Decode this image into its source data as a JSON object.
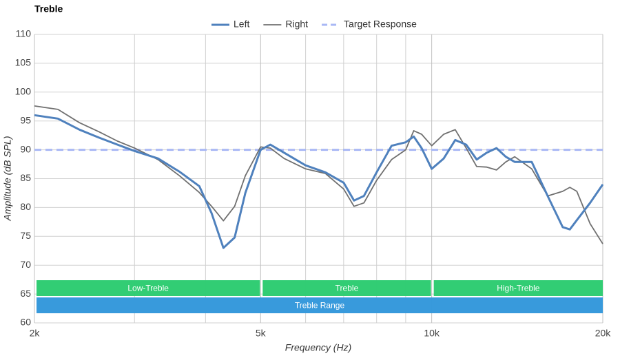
{
  "chart_data": {
    "type": "line",
    "title": "Treble",
    "x_label": "Frequency (Hz)",
    "y_label": "Amplitude (dB SPL)",
    "log_x": true,
    "grid": true,
    "xlim": [
      2000,
      20000
    ],
    "xticks": [
      {
        "value": 2000,
        "label": "2k"
      },
      {
        "value": 5000,
        "label": "5k"
      },
      {
        "value": 10000,
        "label": "10k"
      },
      {
        "value": 20000,
        "label": "20k"
      }
    ],
    "xminor": [
      3000,
      4000,
      6000,
      7000,
      8000,
      9000
    ],
    "ylim": [
      60,
      110
    ],
    "yticks": [
      60,
      65,
      70,
      75,
      80,
      85,
      90,
      95,
      100,
      105,
      110
    ],
    "legend": "top",
    "x": [
      2000,
      2200,
      2400,
      2600,
      2800,
      3000,
      3300,
      3600,
      3900,
      4100,
      4300,
      4500,
      4700,
      5000,
      5200,
      5500,
      6000,
      6500,
      7000,
      7300,
      7600,
      8000,
      8500,
      9000,
      9300,
      9600,
      10000,
      10500,
      11000,
      11500,
      12000,
      12500,
      13000,
      13500,
      14000,
      15000,
      16000,
      17000,
      17500,
      18000,
      19000,
      20000
    ],
    "series": [
      {
        "name": "Left",
        "color": "#4f81bd",
        "width": 3,
        "dash": false,
        "values": [
          96.0,
          95.4,
          93.5,
          92.1,
          90.9,
          89.8,
          88.5,
          86.2,
          83.7,
          79.0,
          73.0,
          74.8,
          82.5,
          90.0,
          90.9,
          89.5,
          87.3,
          86.1,
          84.3,
          81.2,
          82.0,
          86.1,
          90.7,
          91.3,
          92.3,
          90.3,
          86.7,
          88.5,
          91.7,
          90.9,
          88.3,
          89.5,
          90.3,
          88.8,
          87.9,
          87.9,
          82.0,
          76.6,
          76.2,
          77.8,
          80.8,
          84.0
        ]
      },
      {
        "name": "Right",
        "color": "#707070",
        "width": 1.8,
        "dash": false,
        "values": [
          97.6,
          97.0,
          94.7,
          93.1,
          91.5,
          90.3,
          88.3,
          85.5,
          82.6,
          80.2,
          77.7,
          80.2,
          85.5,
          90.5,
          90.3,
          88.5,
          86.7,
          85.9,
          83.2,
          80.2,
          80.8,
          84.7,
          88.3,
          90.0,
          93.3,
          92.7,
          90.7,
          92.7,
          93.5,
          90.3,
          87.1,
          87.0,
          86.5,
          87.9,
          88.8,
          86.7,
          82.0,
          82.8,
          83.5,
          82.8,
          77.2,
          73.7
        ]
      },
      {
        "name": "Target Response",
        "color": "#a9b8f5",
        "width": 3,
        "dash": true,
        "x": [
          2000,
          20000
        ],
        "values": [
          90,
          90
        ]
      }
    ],
    "bands": [
      {
        "label": "Low-Treble",
        "from": 2000,
        "to": 5000,
        "row": 0,
        "color": "#2ecc71"
      },
      {
        "label": "Treble",
        "from": 5000,
        "to": 10000,
        "row": 0,
        "color": "#2ecc71"
      },
      {
        "label": "High-Treble",
        "from": 10000,
        "to": 20000,
        "row": 0,
        "color": "#2ecc71"
      },
      {
        "label": "Treble Range",
        "from": 2000,
        "to": 20000,
        "row": 1,
        "color": "#3498db"
      }
    ]
  }
}
